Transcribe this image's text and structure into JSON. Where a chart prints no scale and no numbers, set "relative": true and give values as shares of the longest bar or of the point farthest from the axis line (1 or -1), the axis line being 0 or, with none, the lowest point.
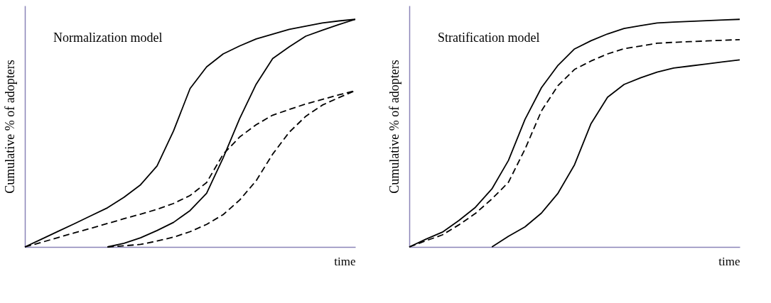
{
  "chart_data": [
    {
      "type": "line",
      "title": "Normalization model",
      "xlabel": "time",
      "ylabel": "Cumulative % of adopters",
      "relative": true,
      "categories": [
        null,
        null,
        null,
        null,
        null,
        null,
        null,
        null,
        null,
        null,
        null,
        null,
        null,
        null,
        null,
        null,
        null,
        null,
        null,
        null,
        null
      ],
      "series": [
        {
          "color": "#000000",
          "line_style": "solid",
          "values": [
            0,
            0.034,
            0.068,
            0.102,
            0.137,
            0.172,
            0.218,
            0.273,
            0.356,
            0.51,
            0.696,
            0.791,
            0.848,
            0.883,
            0.914,
            0.935,
            0.956,
            0.97,
            0.984,
            0.993,
            1
          ]
        },
        {
          "color": "#000000",
          "line_style": "solid",
          "values": [
            null,
            null,
            null,
            null,
            null,
            0,
            0.016,
            0.04,
            0.072,
            0.108,
            0.16,
            0.236,
            0.391,
            0.564,
            0.715,
            0.828,
            0.879,
            0.926,
            0.952,
            0.977,
            1
          ]
        },
        {
          "color": "#000000",
          "line_style": "dashed",
          "values": [
            0,
            0.02,
            0.041,
            0.062,
            0.082,
            0.103,
            0.124,
            0.144,
            0.165,
            0.191,
            0.226,
            0.283,
            0.407,
            0.483,
            0.537,
            0.579,
            0.604,
            0.628,
            0.648,
            0.668,
            0.687
          ]
        },
        {
          "color": "#000000",
          "line_style": "dashed",
          "values": [
            null,
            null,
            null,
            null,
            null,
            0,
            0.005,
            0.011,
            0.026,
            0.043,
            0.067,
            0.099,
            0.142,
            0.206,
            0.291,
            0.408,
            0.504,
            0.574,
            0.623,
            0.656,
            0.687
          ]
        }
      ]
    },
    {
      "type": "line",
      "title": "Stratification model",
      "xlabel": "time",
      "ylabel": "Cumulative % of adopters",
      "relative": true,
      "categories": [
        null,
        null,
        null,
        null,
        null,
        null,
        null,
        null,
        null,
        null,
        null,
        null,
        null,
        null,
        null,
        null,
        null,
        null,
        null,
        null,
        null
      ],
      "series": [
        {
          "color": "#000000",
          "line_style": "solid",
          "values": [
            0,
            0.034,
            0.065,
            0.116,
            0.174,
            0.255,
            0.38,
            0.56,
            0.7,
            0.798,
            0.87,
            0.906,
            0.936,
            0.96,
            0.972,
            0.984,
            0.988,
            0.991,
            0.994,
            0.997,
            1
          ]
        },
        {
          "color": "#000000",
          "line_style": "dashed",
          "values": [
            0,
            0.027,
            0.053,
            0.097,
            0.147,
            0.211,
            0.284,
            0.429,
            0.598,
            0.709,
            0.78,
            0.817,
            0.848,
            0.871,
            0.883,
            0.895,
            0.899,
            0.902,
            0.905,
            0.908,
            0.911
          ]
        },
        {
          "color": "#000000",
          "line_style": "solid",
          "values": [
            null,
            null,
            null,
            null,
            null,
            0,
            0.047,
            0.088,
            0.149,
            0.236,
            0.361,
            0.542,
            0.658,
            0.714,
            0.743,
            0.768,
            0.786,
            0.795,
            0.804,
            0.813,
            0.822
          ]
        }
      ]
    }
  ]
}
